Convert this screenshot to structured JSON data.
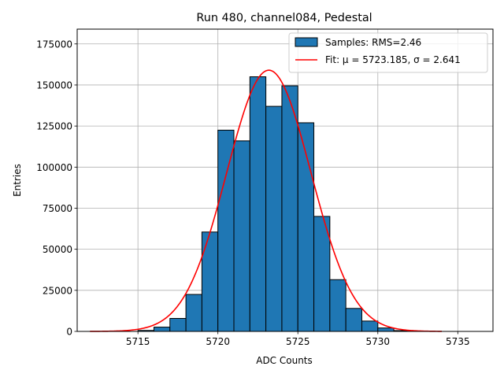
{
  "chart_data": {
    "type": "bar",
    "title": "Run 480, channel084, Pedestal",
    "xlabel": "ADC Counts",
    "ylabel": "Entries",
    "xlim": [
      5711.2,
      5737.2
    ],
    "ylim": [
      0,
      184000
    ],
    "grid": true,
    "legend_position": "top-right",
    "x_ticks": [
      5715,
      5720,
      5725,
      5730,
      5735
    ],
    "x_tick_labels": [
      "5715",
      "5720",
      "5725",
      "5730",
      "5735"
    ],
    "y_ticks": [
      0,
      25000,
      50000,
      75000,
      100000,
      125000,
      150000,
      175000
    ],
    "y_tick_labels": [
      "0",
      "25000",
      "50000",
      "75000",
      "100000",
      "125000",
      "150000",
      "175000"
    ],
    "histogram": {
      "name": "Samples: RMS=2.46",
      "color": "#1f77b4",
      "edge_color": "#000000",
      "bin_edges": [
        5715,
        5716,
        5717,
        5718,
        5719,
        5720,
        5721,
        5722,
        5723,
        5724,
        5725,
        5726,
        5727,
        5728,
        5729,
        5730,
        5731,
        5732
      ],
      "values": [
        600,
        2600,
        7900,
        22500,
        60500,
        122500,
        116000,
        155000,
        137000,
        149500,
        127000,
        70000,
        31500,
        14000,
        6300,
        2100,
        500
      ]
    },
    "fit": {
      "name": "Fit: μ = 5723.185, σ = 2.641",
      "color": "#ff0000",
      "mu": 5723.185,
      "sigma": 2.641,
      "amplitude": 159000,
      "x_range": [
        5712,
        5734
      ]
    }
  }
}
